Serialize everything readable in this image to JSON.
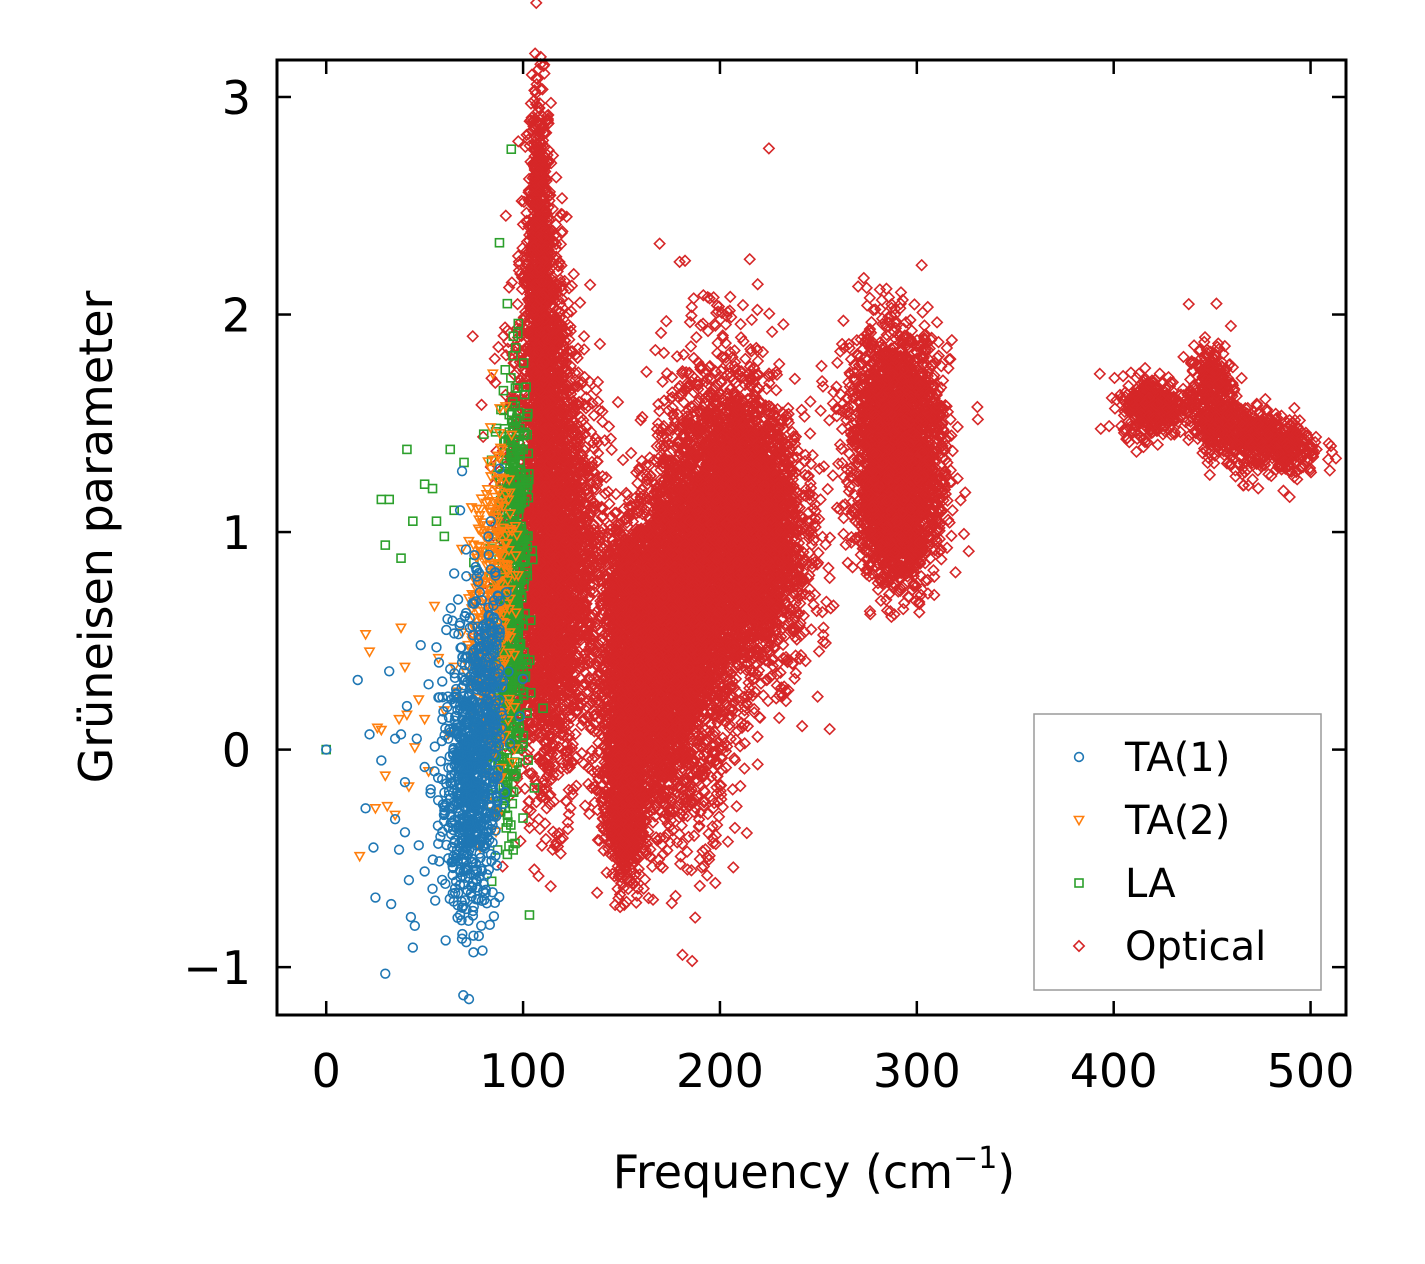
{
  "chart_data": {
    "type": "scatter",
    "title": "",
    "xlabel": "Frequency (cm",
    "xlabel_sup": "−1",
    "xlabel_end": ")",
    "ylabel": "Grüneisen parameter",
    "xlim": [
      -25,
      518
    ],
    "ylim": [
      -1.22,
      3.17
    ],
    "xticks": [
      0,
      100,
      200,
      300,
      400,
      500
    ],
    "xtick_labels": [
      "0",
      "100",
      "200",
      "300",
      "400",
      "500"
    ],
    "yticks": [
      -1,
      0,
      1,
      2,
      3
    ],
    "ytick_labels": [
      "−1",
      "0",
      "1",
      "2",
      "3"
    ],
    "grid": false,
    "legend_position": "lower-right",
    "series": [
      {
        "name": "TA(1)",
        "marker": "circle",
        "color": "#1f77b4",
        "points": [
          [
            0,
            0
          ],
          [
            16,
            0.32
          ],
          [
            20,
            -0.27
          ],
          [
            22,
            0.07
          ],
          [
            24,
            -0.45
          ],
          [
            25,
            -0.68
          ],
          [
            28,
            -0.05
          ],
          [
            30,
            -1.03
          ],
          [
            32,
            0.36
          ],
          [
            33,
            -0.71
          ],
          [
            35,
            0.05
          ],
          [
            35,
            -0.32
          ],
          [
            37,
            -0.46
          ],
          [
            38,
            0.07
          ],
          [
            40,
            -0.15
          ],
          [
            40,
            -0.38
          ],
          [
            41,
            0.2
          ],
          [
            42,
            -0.6
          ],
          [
            43,
            -0.77
          ],
          [
            44,
            -0.91
          ],
          [
            45,
            -0.81
          ],
          [
            46,
            0.05
          ],
          [
            47,
            -0.44
          ],
          [
            48,
            0.48
          ],
          [
            50,
            -0.08
          ],
          [
            50,
            -0.56
          ],
          [
            52,
            0.3
          ],
          [
            53,
            -0.2
          ],
          [
            54,
            -0.64
          ],
          [
            55,
            -0.1
          ],
          [
            56,
            0.47
          ],
          [
            57,
            0.24
          ],
          [
            58,
            -0.4
          ],
          [
            59,
            0.14
          ],
          [
            60,
            -0.28
          ],
          [
            61,
            0.55
          ],
          [
            62,
            0.05
          ],
          [
            62,
            -0.5
          ],
          [
            63,
            0.37
          ],
          [
            64,
            -0.15
          ],
          [
            65,
            0.81
          ],
          [
            65,
            0.24
          ],
          [
            66,
            -0.36
          ],
          [
            67,
            0.69
          ],
          [
            68,
            1.1
          ],
          [
            68,
            -0.76
          ],
          [
            69,
            1.28
          ],
          [
            69,
            0.4
          ],
          [
            70,
            -0.62
          ],
          [
            71,
            0.92
          ],
          [
            72,
            0.14
          ],
          [
            72,
            -0.08
          ],
          [
            73,
            0.56
          ],
          [
            74,
            -0.42
          ],
          [
            75,
            0.33
          ],
          [
            76,
            -0.25
          ],
          [
            78,
            0.1
          ],
          [
            80,
            -0.22
          ],
          [
            82,
            0.47
          ],
          [
            84,
            -0.33
          ],
          [
            86,
            0.8
          ],
          [
            88,
            0.52
          ]
        ],
        "clusters": [
          [
            72,
            -0.2,
            7,
            0.28,
            550
          ],
          [
            77,
            0.05,
            6,
            0.3,
            260
          ],
          [
            82,
            0.3,
            5,
            0.3,
            140
          ]
        ]
      },
      {
        "name": "TA(2)",
        "marker": "triangle-down",
        "color": "#ff7f0e",
        "points": [
          [
            17,
            -0.49
          ],
          [
            20,
            0.53
          ],
          [
            22,
            0.45
          ],
          [
            25,
            -0.27
          ],
          [
            26,
            0.1
          ],
          [
            28,
            0.09
          ],
          [
            30,
            -0.12
          ],
          [
            31,
            -0.26
          ],
          [
            35,
            -0.3
          ],
          [
            37,
            0.14
          ],
          [
            38,
            0.56
          ],
          [
            40,
            0.38
          ],
          [
            41,
            0.16
          ],
          [
            42,
            -0.17
          ],
          [
            45,
            0.01
          ],
          [
            47,
            0.23
          ],
          [
            50,
            0.14
          ],
          [
            52,
            -0.1
          ],
          [
            55,
            0.66
          ],
          [
            57,
            0.42
          ],
          [
            60,
            0.18
          ],
          [
            62,
            0.07
          ],
          [
            65,
            0.38
          ],
          [
            68,
            0.22
          ],
          [
            72,
            0.48
          ],
          [
            76,
            0.71
          ],
          [
            80,
            0.3
          ],
          [
            85,
            1.33
          ],
          [
            88,
            0.64
          ]
        ],
        "clusters": [
          [
            82,
            0.5,
            6,
            0.35,
            220
          ],
          [
            88,
            0.9,
            4,
            0.35,
            120
          ]
        ]
      },
      {
        "name": "LA",
        "marker": "square",
        "color": "#2ca02c",
        "points": [
          [
            0,
            0
          ],
          [
            28,
            1.15
          ],
          [
            30,
            0.94
          ],
          [
            32,
            1.15
          ],
          [
            38,
            0.88
          ],
          [
            41,
            1.38
          ],
          [
            44,
            1.05
          ],
          [
            50,
            1.22
          ],
          [
            54,
            1.2
          ],
          [
            56,
            1.05
          ],
          [
            60,
            0.98
          ],
          [
            63,
            1.38
          ],
          [
            65,
            1.1
          ],
          [
            70,
            1.32
          ],
          [
            75,
            0.86
          ],
          [
            80,
            1.45
          ],
          [
            84,
            1.33
          ],
          [
            88,
            2.33
          ],
          [
            90,
            1.65
          ],
          [
            92,
            2.05
          ],
          [
            94,
            2.76
          ],
          [
            95,
            1.9
          ],
          [
            96,
            1.58
          ],
          [
            98,
            1.45
          ],
          [
            100,
            1.38
          ],
          [
            102,
            1.53
          ],
          [
            91,
            -0.27
          ],
          [
            95,
            -0.12
          ],
          [
            97,
            -0.06
          ]
        ],
        "clusters": [
          [
            93,
            0.6,
            4,
            0.45,
            380
          ],
          [
            97,
            1.0,
            3,
            0.35,
            180
          ],
          [
            90,
            0.15,
            4,
            0.2,
            120
          ]
        ]
      },
      {
        "name": "Optical",
        "marker": "diamond",
        "color": "#d62728",
        "points": [
          [
            104,
            2.97
          ],
          [
            107,
            2.88
          ],
          [
            110,
            2.6
          ],
          [
            98,
            2.23
          ],
          [
            138,
            1.69
          ],
          [
            138,
            1.6
          ],
          [
            137,
            1.43
          ],
          [
            130,
            1.2
          ],
          [
            126,
            0.4
          ],
          [
            118,
            0.12
          ],
          [
            113,
            -0.1
          ],
          [
            108,
            -0.32
          ],
          [
            103,
            -0.33
          ],
          [
            112,
            -0.27
          ],
          [
            148,
            -0.64
          ],
          [
            149,
            -0.55
          ],
          [
            196,
            1.63
          ],
          [
            190,
            1.48
          ],
          [
            178,
            -0.2
          ],
          [
            184,
            -0.06
          ],
          [
            296,
            0.86
          ],
          [
            293,
            1.8
          ],
          [
            233,
            0.52
          ],
          [
            170,
            1.1
          ],
          [
            146,
            0.4
          ]
        ],
        "clusters": [
          [
            108,
            2.45,
            3,
            0.3,
            450
          ],
          [
            110,
            1.8,
            6,
            0.32,
            900
          ],
          [
            115,
            1.1,
            12,
            0.38,
            1700
          ],
          [
            112,
            0.4,
            10,
            0.35,
            900
          ],
          [
            118,
            0.65,
            12,
            0.2,
            350
          ],
          [
            155,
            0.75,
            7,
            0.15,
            600
          ],
          [
            152,
            0.1,
            8,
            0.28,
            1000
          ],
          [
            152,
            -0.3,
            4,
            0.15,
            400
          ],
          [
            168,
            0.35,
            10,
            0.35,
            1300
          ],
          [
            175,
            0.7,
            10,
            0.3,
            1100
          ],
          [
            185,
            0.55,
            12,
            0.45,
            1500
          ],
          [
            200,
            1.05,
            13,
            0.4,
            1500
          ],
          [
            210,
            1.0,
            14,
            0.35,
            1200
          ],
          [
            220,
            1.18,
            11,
            0.2,
            700
          ],
          [
            225,
            0.85,
            12,
            0.25,
            700
          ],
          [
            288,
            1.5,
            12,
            0.22,
            1500
          ],
          [
            288,
            1.05,
            9,
            0.15,
            800
          ],
          [
            296,
            1.25,
            10,
            0.25,
            700
          ],
          [
            420,
            1.58,
            8,
            0.07,
            380
          ],
          [
            450,
            1.62,
            6,
            0.12,
            350
          ],
          [
            465,
            1.47,
            12,
            0.05,
            280
          ],
          [
            482,
            1.38,
            12,
            0.07,
            330
          ]
        ]
      }
    ]
  }
}
